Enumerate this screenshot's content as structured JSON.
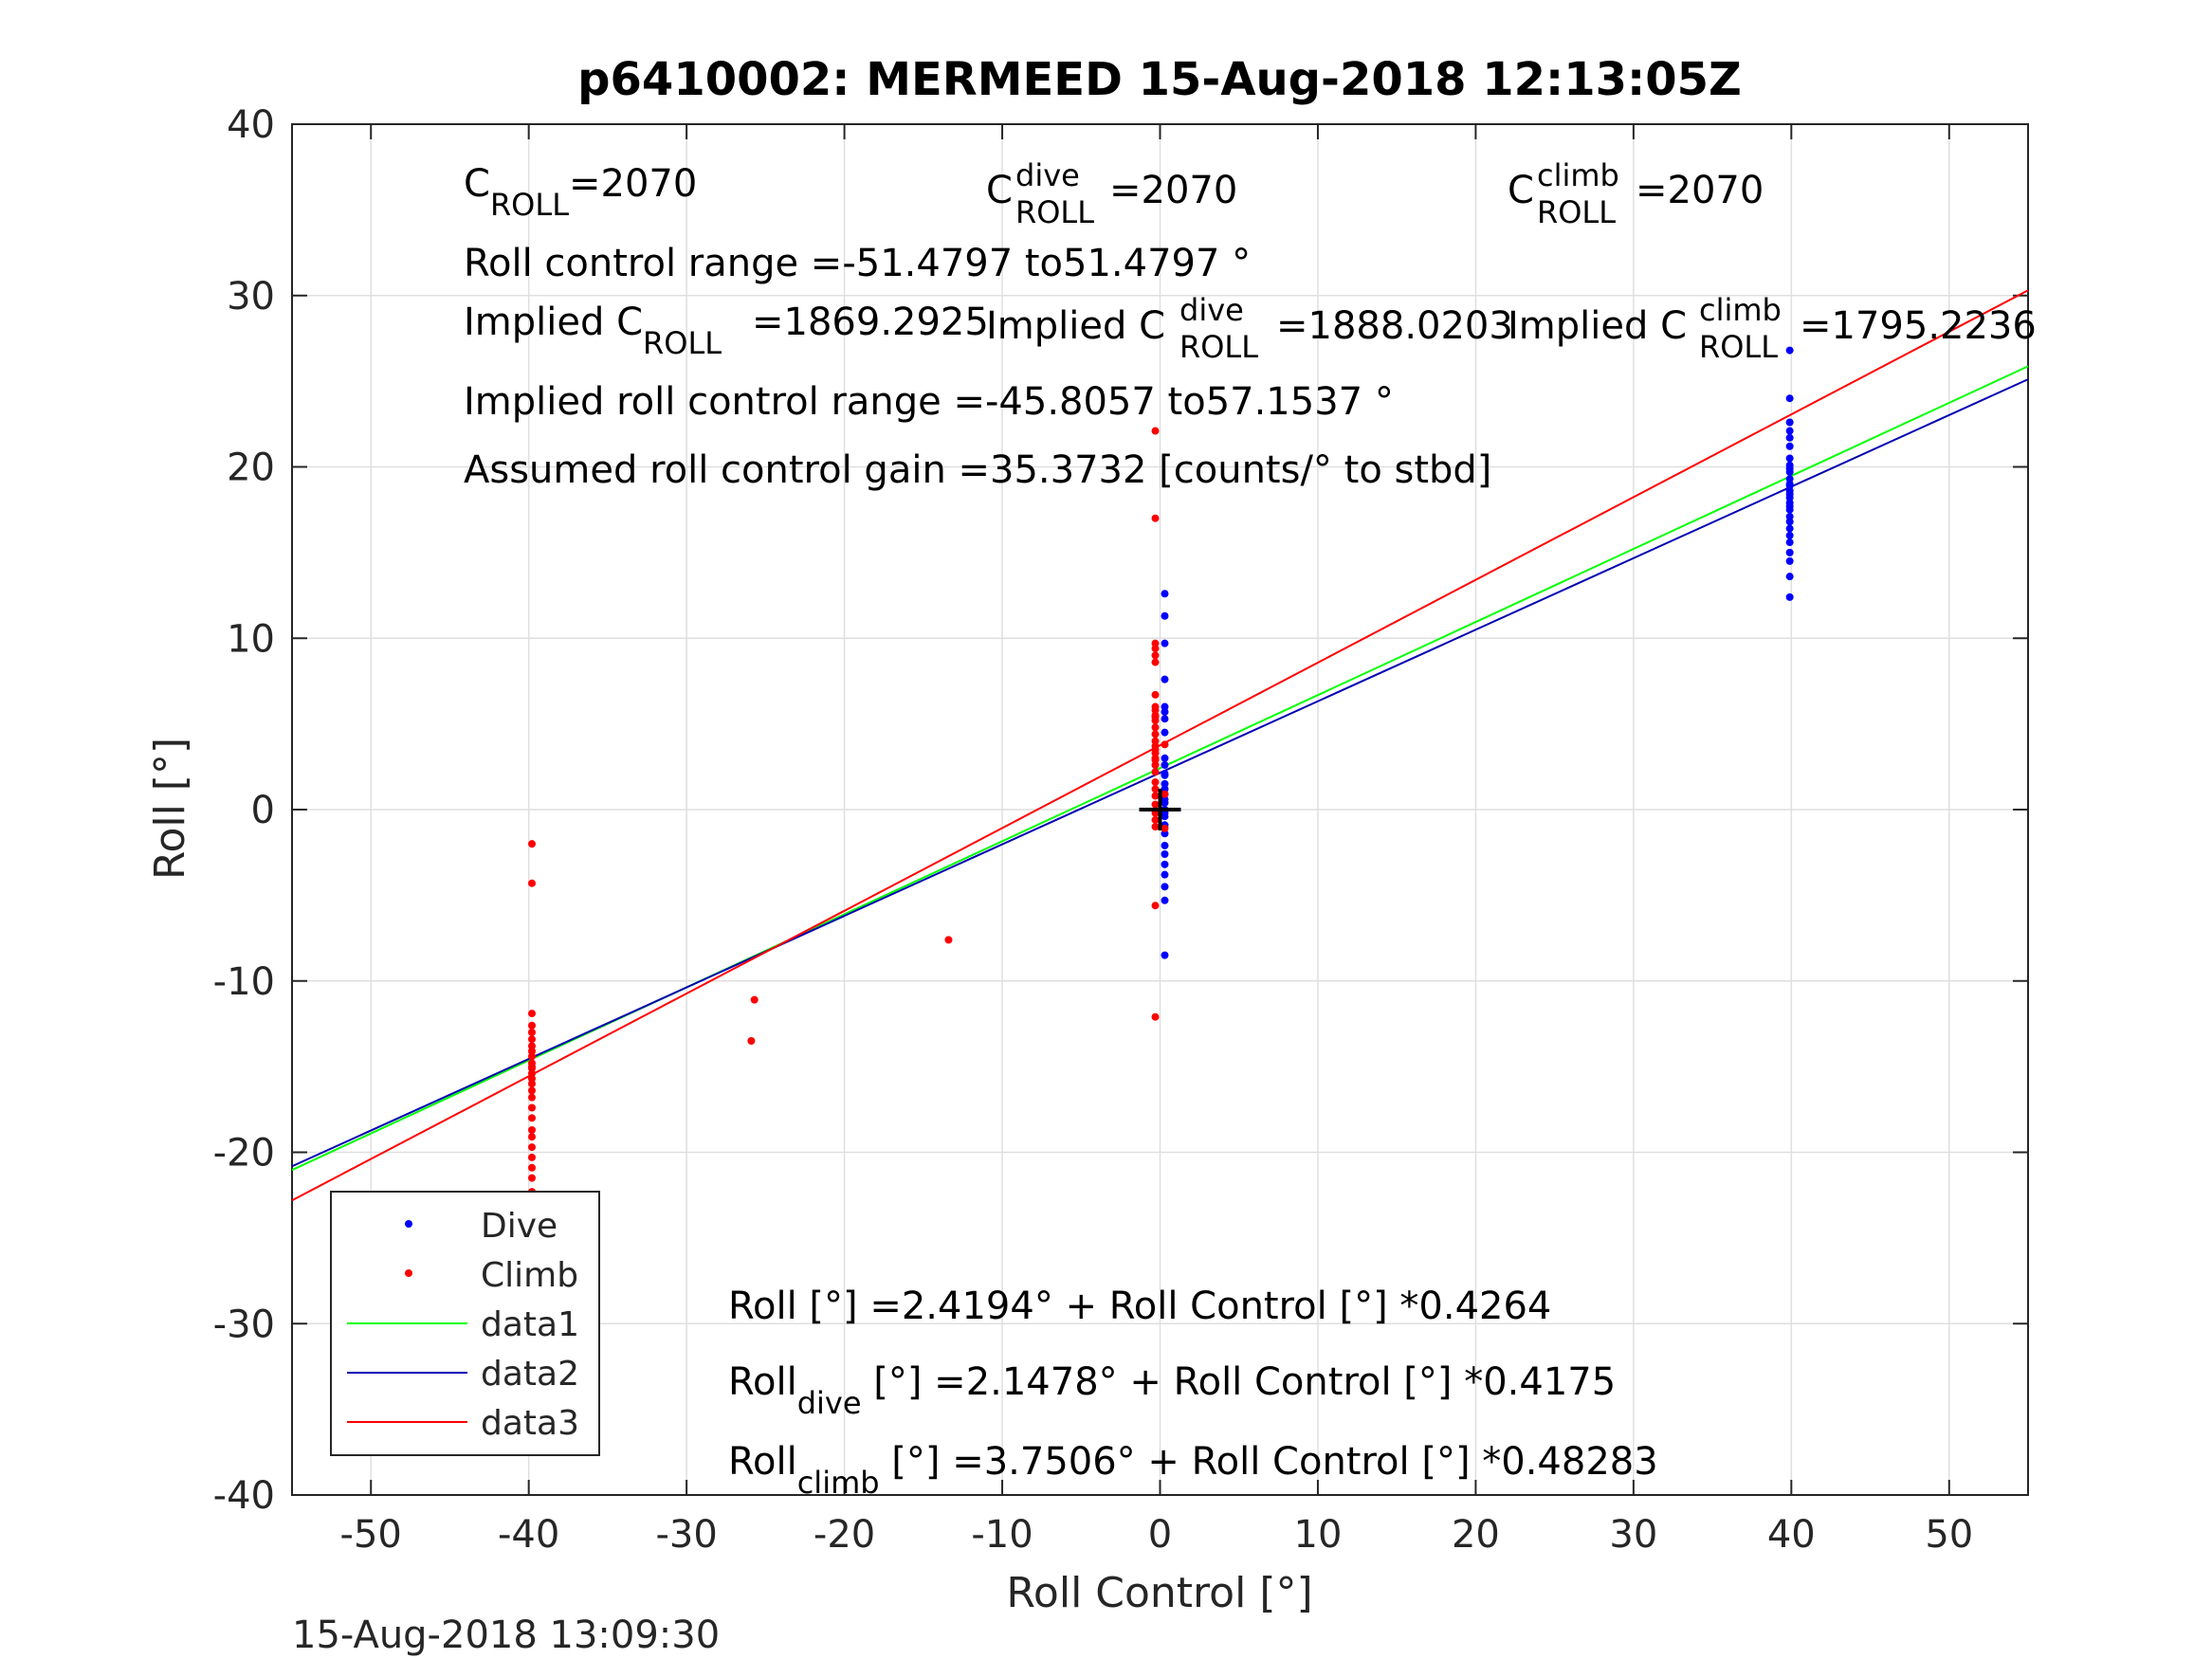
{
  "timestamp": "15-Aug-2018 13:09:30",
  "chart_data": {
    "type": "scatter",
    "title": "p6410002: MERMEED 15-Aug-2018 12:13:05Z",
    "xlabel": "Roll Control [°]",
    "ylabel": "Roll [°]",
    "xlim": [
      -55,
      55
    ],
    "ylim": [
      -40,
      40
    ],
    "xticks": [
      -50,
      -40,
      -30,
      -20,
      -10,
      0,
      10,
      20,
      30,
      40,
      50
    ],
    "yticks": [
      -40,
      -30,
      -20,
      -10,
      0,
      10,
      20,
      30,
      40
    ],
    "xtick_labels": [
      "-50",
      "-40",
      "-30",
      "-20",
      "-10",
      "0",
      "10",
      "20",
      "30",
      "40",
      "50"
    ],
    "ytick_labels": [
      "-40",
      "-30",
      "-20",
      "-10",
      "0",
      "10",
      "20",
      "30",
      "40"
    ],
    "grid": true,
    "legend_position": "bottom-left",
    "series": [
      {
        "name": "Dive",
        "kind": "points",
        "color": "#0000ff",
        "x": [
          0.3,
          0.3,
          0.3,
          0.3,
          0.3,
          0.3,
          0.3,
          0.3,
          0.3,
          0.3,
          0.3,
          0.3,
          0.3,
          0.3,
          0.3,
          0.3,
          0.3,
          0.3,
          0.3,
          0.3,
          0.3,
          0.3,
          0.3,
          0.3,
          0.3,
          0.3,
          0.3,
          0.3,
          0.3,
          39.9,
          39.9,
          39.9,
          39.9,
          39.9,
          39.9,
          39.9,
          39.9,
          39.9,
          39.9,
          39.9,
          39.9,
          39.9,
          39.9,
          39.9,
          39.9,
          39.9,
          39.9,
          39.9,
          39.9,
          39.9,
          39.9,
          39.9,
          39.9,
          39.9,
          39.9,
          39.9,
          39.9
        ],
        "y": [
          12.6,
          11.3,
          9.7,
          7.6,
          6.0,
          5.7,
          5.3,
          4.5,
          3.0,
          2.6,
          2.1,
          1.5,
          1.2,
          0.9,
          0.4,
          0.0,
          -0.4,
          -0.9,
          -1.4,
          -2.1,
          -2.6,
          -3.2,
          -3.8,
          -4.5,
          -5.3,
          -8.5,
          2.0,
          -0.2,
          0.6,
          26.8,
          24.0,
          22.6,
          22.1,
          21.7,
          21.2,
          20.5,
          20.1,
          19.7,
          19.3,
          18.9,
          18.6,
          18.2,
          17.9,
          17.5,
          17.1,
          16.8,
          16.4,
          16.0,
          15.6,
          15.0,
          14.5,
          13.6,
          12.4,
          19.0,
          18.4,
          17.7,
          19.9
        ]
      },
      {
        "name": "Climb",
        "kind": "points",
        "color": "#ff0000",
        "x": [
          -39.8,
          -39.8,
          -39.8,
          -39.8,
          -39.8,
          -39.8,
          -39.8,
          -39.8,
          -39.8,
          -39.8,
          -39.8,
          -39.8,
          -39.8,
          -39.8,
          -39.8,
          -39.8,
          -39.8,
          -39.8,
          -39.8,
          -39.8,
          -39.8,
          -39.8,
          -39.8,
          -39.8,
          -39.8,
          -39.8,
          -39.8,
          -25.9,
          -25.7,
          -13.4,
          -0.3,
          -0.3,
          -0.3,
          -0.3,
          -0.3,
          -0.3,
          -0.3,
          -0.3,
          -0.3,
          -0.3,
          -0.3,
          -0.3,
          -0.3,
          -0.3,
          -0.3,
          -0.3,
          -0.3,
          -0.3,
          -0.3,
          -0.3,
          -0.3,
          -0.3,
          -0.3,
          -0.3,
          -0.3,
          -0.3,
          -0.3,
          -0.3,
          -0.3,
          -0.3,
          -0.3,
          0.3,
          0.3,
          0.3
        ],
        "y": [
          -2.0,
          -4.3,
          -11.9,
          -12.6,
          -13.0,
          -13.4,
          -13.8,
          -14.1,
          -14.4,
          -14.8,
          -15.1,
          -15.4,
          -15.7,
          -16.0,
          -16.4,
          -16.8,
          -17.4,
          -18.0,
          -18.7,
          -19.1,
          -19.7,
          -20.3,
          -20.9,
          -21.5,
          -22.3,
          -23.6,
          -15.0,
          -13.5,
          -11.1,
          -7.6,
          22.1,
          17.0,
          9.7,
          9.4,
          9.0,
          8.6,
          6.7,
          6.0,
          5.8,
          5.5,
          5.2,
          4.8,
          4.4,
          4.0,
          3.7,
          3.3,
          3.0,
          2.6,
          2.2,
          1.6,
          1.2,
          0.8,
          0.3,
          -0.2,
          -0.6,
          -1.0,
          -5.6,
          -12.1,
          3.5,
          2.9,
          5.4,
          3.8,
          0.9,
          -1.1
        ]
      },
      {
        "name": "data1",
        "kind": "line",
        "color": "#00ff00",
        "intercept": 2.4194,
        "slope": 0.4264
      },
      {
        "name": "data2",
        "kind": "line",
        "color": "#0000b3",
        "intercept": 2.1478,
        "slope": 0.4175
      },
      {
        "name": "data3",
        "kind": "line",
        "color": "#ff0000",
        "intercept": 3.7506,
        "slope": 0.48283
      }
    ],
    "marker": {
      "x": 0,
      "y": 0,
      "color": "#000000"
    },
    "annotations": {
      "c_roll": {
        "main": "C",
        "sub": "ROLL",
        "value": "=2070"
      },
      "c_roll_dive": {
        "main": "C",
        "sub": "ROLL",
        "sup": "dive",
        "value": "=2070"
      },
      "c_roll_climb": {
        "main": "C",
        "sub": "ROLL",
        "sup": "climb",
        "value": "=2070"
      },
      "roll_control_range": "Roll control range =-51.4797 to51.4797 °",
      "implied_c_roll": {
        "pre": "Implied C",
        "sub": "ROLL",
        "value": "=1869.2925"
      },
      "implied_c_roll_dive": {
        "pre": "Implied C",
        "sub": "ROLL",
        "sup": "dive",
        "value": "=1888.0203"
      },
      "implied_c_roll_climb": {
        "pre": "Implied C",
        "sub": "ROLL",
        "sup": "climb",
        "value": "=1795.2236"
      },
      "implied_range": "Implied roll control range =-45.8057 to57.1537 °",
      "gain": "Assumed roll control gain =35.3732 [counts/° to stbd]",
      "fit_all": {
        "pre": "Roll [°] =2.4194° + Roll Control [°] *0.4264"
      },
      "fit_dive": {
        "pre": "Roll",
        "sub": "dive",
        "post": " [°] =2.1478° + Roll Control [°] *0.4175"
      },
      "fit_climb": {
        "pre": "Roll",
        "sub": "climb",
        "post": " [°] =3.7506° + Roll Control [°] *0.48283"
      }
    }
  }
}
